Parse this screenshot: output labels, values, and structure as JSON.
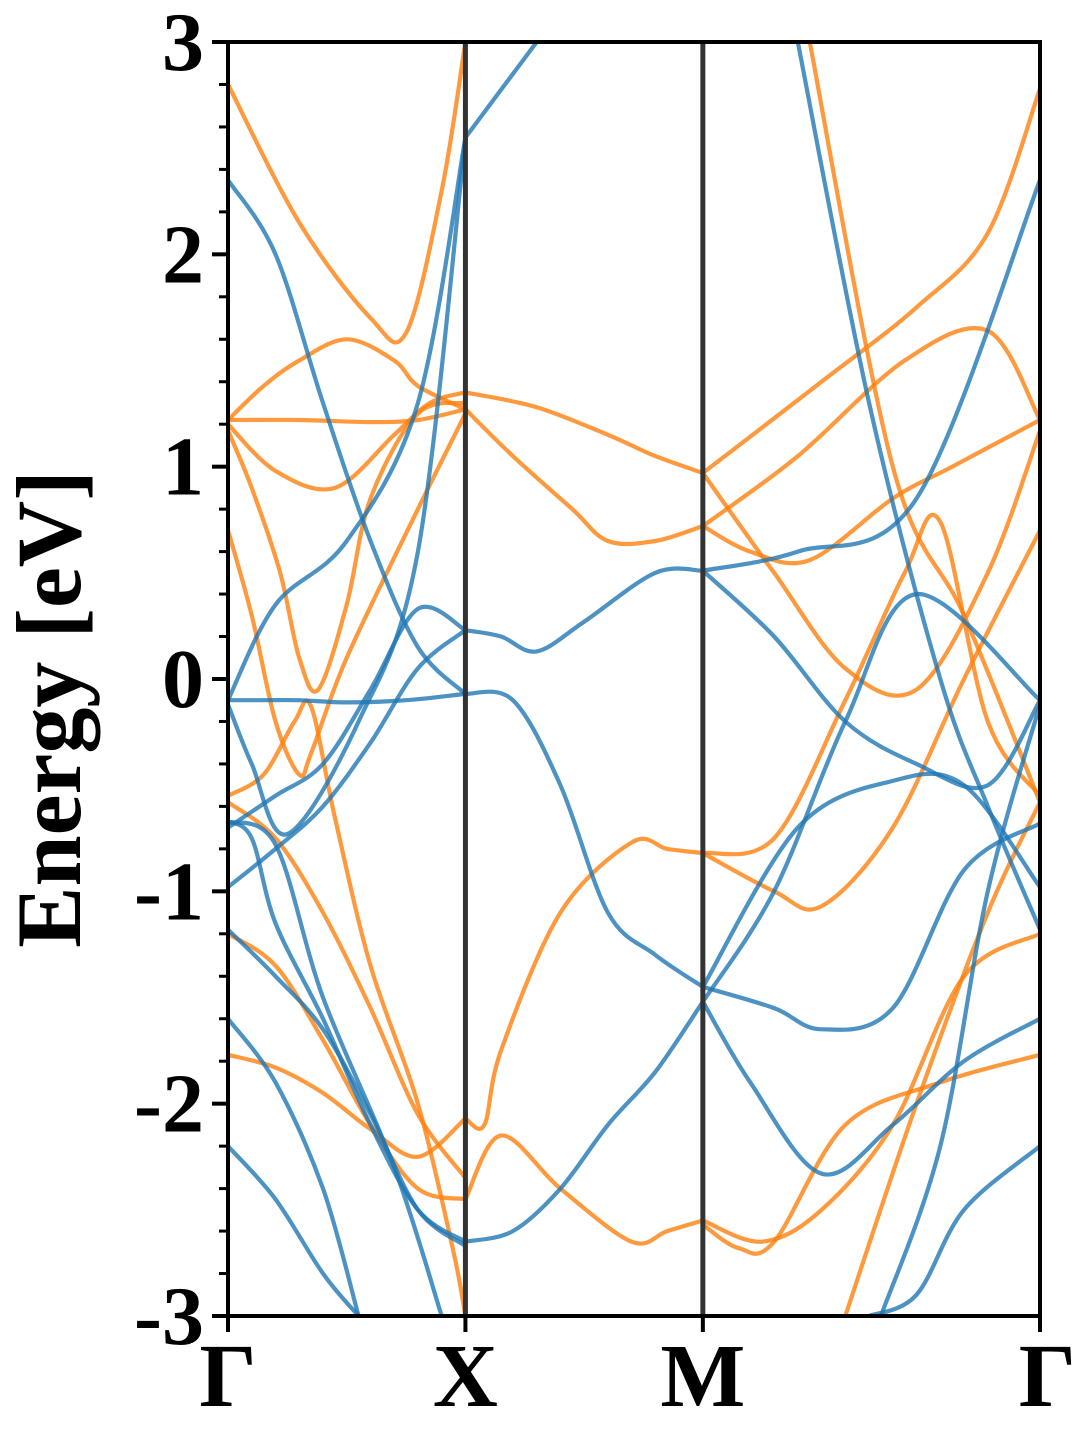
{
  "chart_data": {
    "type": "line",
    "title": "",
    "xlabel": "",
    "ylabel": "Energy [eV]",
    "ylim": [
      -3,
      3
    ],
    "yticks": [
      -3,
      -2,
      -1,
      0,
      1,
      2,
      3
    ],
    "ytick_labels": [
      "-3",
      "-2",
      "-1",
      "0",
      "1",
      "2",
      "3"
    ],
    "k_path": {
      "labels": [
        "Γ",
        "X",
        "M",
        "Γ"
      ],
      "positions": [
        0,
        1,
        2,
        3.42
      ]
    },
    "high_symmetry_lines": [
      1,
      2
    ],
    "grid": false,
    "legend": "none",
    "series_colors": {
      "blue": "#1f77b4",
      "orange": "#ff7f0e"
    },
    "series": [
      {
        "color": "#ff7f0e",
        "x": [
          0,
          0.3,
          0.6,
          0.75,
          0.9,
          1.0
        ],
        "y": [
          2.8,
          2.15,
          1.7,
          1.63,
          2.3,
          3.0
        ]
      },
      {
        "color": "#ff7f0e",
        "x": [
          0,
          0.3,
          0.6,
          0.8,
          1.0
        ],
        "y": [
          1.22,
          1.22,
          1.21,
          1.22,
          1.27
        ]
      },
      {
        "color": "#ff7f0e",
        "x": [
          0,
          0.2,
          0.45,
          0.7,
          0.85,
          1.0
        ],
        "y": [
          1.2,
          0.98,
          0.9,
          1.15,
          1.3,
          1.35
        ]
      },
      {
        "color": "#ff7f0e",
        "x": [
          0,
          0.15,
          0.3,
          0.5,
          0.7,
          0.8,
          1.0
        ],
        "y": [
          1.22,
          1.38,
          1.5,
          1.6,
          1.5,
          1.38,
          1.27
        ]
      },
      {
        "color": "#ff7f0e",
        "x": [
          0,
          0.1,
          0.22,
          0.3,
          0.38,
          0.5,
          0.6,
          0.8,
          1.0
        ],
        "y": [
          1.17,
          0.9,
          0.5,
          0.1,
          -0.05,
          0.35,
          0.85,
          1.25,
          1.3
        ]
      },
      {
        "color": "#ff7f0e",
        "x": [
          0,
          0.1,
          0.2,
          0.3,
          0.35,
          0.5,
          0.8,
          1.0
        ],
        "y": [
          0.7,
          0.3,
          -0.2,
          -0.45,
          -0.35,
          0.1,
          0.8,
          1.25
        ]
      },
      {
        "color": "#ff7f0e",
        "x": [
          0,
          0.15,
          0.28,
          0.35,
          0.45,
          0.6,
          0.8,
          0.95,
          1.0
        ],
        "y": [
          -0.55,
          -0.45,
          -0.2,
          -0.13,
          -0.65,
          -1.35,
          -2.0,
          -2.7,
          -3.0
        ]
      },
      {
        "color": "#ff7f0e",
        "x": [
          0,
          0.2,
          0.4,
          0.6,
          0.8,
          1.0
        ],
        "y": [
          -0.58,
          -0.75,
          -1.1,
          -1.55,
          -2.05,
          -2.35
        ]
      },
      {
        "color": "#ff7f0e",
        "x": [
          0,
          0.2,
          0.4,
          0.6,
          0.8,
          1.0
        ],
        "y": [
          -1.2,
          -1.35,
          -1.7,
          -2.1,
          -2.4,
          -2.45
        ]
      },
      {
        "color": "#ff7f0e",
        "x": [
          0,
          0.2,
          0.4,
          0.6,
          0.8,
          1.0
        ],
        "y": [
          -1.77,
          -1.83,
          -1.95,
          -2.12,
          -2.25,
          -2.07
        ]
      },
      {
        "color": "#ff7f0e",
        "x": [
          1.0,
          1.3,
          1.6,
          1.8,
          2.0
        ],
        "y": [
          1.35,
          1.28,
          1.15,
          1.05,
          0.97
        ]
      },
      {
        "color": "#ff7f0e",
        "x": [
          1.0,
          1.2,
          1.45,
          1.6,
          1.8,
          2.0
        ],
        "y": [
          1.27,
          1.05,
          0.8,
          0.65,
          0.65,
          0.72
        ]
      },
      {
        "color": "#ff7f0e",
        "x": [
          1.0,
          1.08,
          1.15,
          1.4,
          1.7,
          1.85,
          2.0
        ],
        "y": [
          -2.07,
          -2.1,
          -1.75,
          -1.1,
          -0.77,
          -0.8,
          -0.82
        ]
      },
      {
        "color": "#ff7f0e",
        "x": [
          1.0,
          1.15,
          1.4,
          1.7,
          1.85,
          2.0
        ],
        "y": [
          -2.45,
          -2.15,
          -2.4,
          -2.65,
          -2.6,
          -2.55
        ]
      },
      {
        "color": "#ff7f0e",
        "x": [
          2.0,
          2.5,
          2.9,
          3.2,
          3.42
        ],
        "y": [
          0.97,
          1.4,
          1.75,
          2.1,
          2.78
        ]
      },
      {
        "color": "#ff7f0e",
        "x": [
          2.0,
          2.4,
          2.85,
          3.2,
          3.42
        ],
        "y": [
          0.72,
          1.05,
          1.5,
          1.64,
          1.22
        ]
      },
      {
        "color": "#ff7f0e",
        "x": [
          2.0,
          2.2,
          2.45,
          2.8,
          3.05,
          3.42
        ],
        "y": [
          0.72,
          0.6,
          0.56,
          0.85,
          1.0,
          1.22
        ]
      },
      {
        "color": "#ff7f0e",
        "x": [
          2.0,
          2.3,
          2.6,
          2.9,
          3.2,
          3.42
        ],
        "y": [
          0.97,
          0.5,
          0.05,
          -0.05,
          0.5,
          1.17
        ]
      },
      {
        "color": "#ff7f0e",
        "x": [
          2.0,
          2.3,
          2.6,
          2.85,
          3.0,
          3.2,
          3.42
        ],
        "y": [
          -0.82,
          -0.75,
          -0.1,
          0.5,
          0.74,
          -0.2,
          -0.55
        ]
      },
      {
        "color": "#ff7f0e",
        "x": [
          2.0,
          2.3,
          2.5,
          2.8,
          3.1,
          3.42
        ],
        "y": [
          -0.82,
          -1.0,
          -1.07,
          -0.7,
          0.0,
          0.7
        ]
      },
      {
        "color": "#ff7f0e",
        "x": [
          2.45,
          2.8,
          3.1,
          3.42
        ],
        "y": [
          3.0,
          1.0,
          0.3,
          -0.58
        ]
      },
      {
        "color": "#ff7f0e",
        "x": [
          2.0,
          2.25,
          2.5,
          2.8,
          3.1,
          3.42
        ],
        "y": [
          -2.55,
          -2.65,
          -2.5,
          -2.1,
          -1.4,
          -1.2
        ]
      },
      {
        "color": "#ff7f0e",
        "x": [
          2.0,
          2.15,
          2.3,
          2.6,
          3.0,
          3.42
        ],
        "y": [
          -2.57,
          -2.68,
          -2.65,
          -2.1,
          -1.9,
          -1.77
        ]
      },
      {
        "color": "#ff7f0e",
        "x": [
          2.6,
          2.9,
          3.2,
          3.42
        ],
        "y": [
          -3.0,
          -2.0,
          -1.1,
          -0.58
        ]
      },
      {
        "color": "#1f77b4",
        "x": [
          0,
          0.2,
          0.4,
          0.6,
          0.8,
          1.0
        ],
        "y": [
          2.35,
          2.0,
          1.3,
          0.65,
          0.15,
          -0.07
        ]
      },
      {
        "color": "#1f77b4",
        "x": [
          0,
          0.15,
          0.3,
          0.5,
          0.75,
          1.0
        ],
        "y": [
          -0.1,
          -0.1,
          -0.1,
          -0.11,
          -0.1,
          -0.07
        ]
      },
      {
        "color": "#1f77b4",
        "x": [
          0,
          0.1,
          0.25,
          0.55,
          0.8,
          1.0
        ],
        "y": [
          -0.12,
          -0.4,
          -0.73,
          -0.2,
          0.6,
          2.55
        ]
      },
      {
        "color": "#1f77b4",
        "x": [
          0,
          0.2,
          0.5,
          0.8,
          1.0
        ],
        "y": [
          -0.1,
          0.35,
          0.65,
          1.3,
          2.55
        ]
      },
      {
        "color": "#1f77b4",
        "x": [
          0,
          0.2,
          0.4,
          0.6,
          0.8,
          1.0
        ],
        "y": [
          -0.7,
          -0.55,
          -0.4,
          -0.05,
          0.33,
          0.23
        ]
      },
      {
        "color": "#1f77b4",
        "x": [
          0,
          0.2,
          0.4,
          0.6,
          0.8,
          1.0
        ],
        "y": [
          -0.98,
          -0.8,
          -0.6,
          -0.3,
          0.05,
          0.23
        ]
      },
      {
        "color": "#1f77b4",
        "x": [
          0,
          0.1,
          0.2,
          0.4,
          0.6,
          0.8,
          1.0
        ],
        "y": [
          -0.67,
          -0.75,
          -1.15,
          -1.6,
          -2.1,
          -2.5,
          -2.65
        ]
      },
      {
        "color": "#1f77b4",
        "x": [
          0,
          0.2,
          0.4,
          0.6,
          0.8,
          1.0
        ],
        "y": [
          -1.18,
          -1.4,
          -1.65,
          -2.05,
          -2.5,
          -2.67
        ]
      },
      {
        "color": "#1f77b4",
        "x": [
          0,
          0.2,
          0.4,
          0.55
        ],
        "y": [
          -1.6,
          -1.9,
          -2.4,
          -3.0
        ]
      },
      {
        "color": "#1f77b4",
        "x": [
          0,
          0.2,
          0.4,
          0.55
        ],
        "y": [
          -2.2,
          -2.45,
          -2.8,
          -3.0
        ]
      },
      {
        "color": "#1f77b4",
        "x": [
          0,
          0.2,
          0.4,
          0.7,
          0.9
        ],
        "y": [
          -0.67,
          -0.78,
          -1.5,
          -2.3,
          -3.0
        ]
      },
      {
        "color": "#1f77b4",
        "x": [
          1.0,
          1.15,
          1.3,
          1.5,
          1.8,
          2.0
        ],
        "y": [
          0.23,
          0.2,
          0.13,
          0.27,
          0.5,
          0.51
        ]
      },
      {
        "color": "#1f77b4",
        "x": [
          1.0,
          1.2,
          1.4,
          1.6,
          1.8,
          2.0
        ],
        "y": [
          -0.07,
          -0.1,
          -0.5,
          -1.1,
          -1.3,
          -1.45
        ]
      },
      {
        "color": "#1f77b4",
        "x": [
          1.0,
          1.2,
          1.4,
          1.6,
          1.8,
          2.0
        ],
        "y": [
          -2.65,
          -2.6,
          -2.4,
          -2.1,
          -1.85,
          -1.52
        ]
      },
      {
        "color": "#1f77b4",
        "x": [
          1.0,
          1.3
        ],
        "y": [
          2.55,
          3.0
        ]
      },
      {
        "color": "#1f77b4",
        "x": [
          2.0,
          2.4,
          2.9,
          3.42
        ],
        "y": [
          0.51,
          0.6,
          0.85,
          2.35
        ]
      },
      {
        "color": "#1f77b4",
        "x": [
          2.0,
          2.3,
          2.6,
          2.9,
          3.2,
          3.42
        ],
        "y": [
          0.51,
          0.2,
          -0.2,
          -0.4,
          -0.5,
          -0.1
        ]
      },
      {
        "color": "#1f77b4",
        "x": [
          2.0,
          2.3,
          2.5,
          2.8,
          3.1,
          3.42
        ],
        "y": [
          -1.45,
          -1.55,
          -1.65,
          -1.55,
          -0.9,
          -0.68
        ]
      },
      {
        "color": "#1f77b4",
        "x": [
          2.0,
          2.4,
          2.8,
          3.1,
          3.42
        ],
        "y": [
          -1.45,
          -0.7,
          -0.48,
          -0.5,
          -0.98
        ]
      },
      {
        "color": "#1f77b4",
        "x": [
          2.0,
          2.3,
          2.6,
          2.9,
          3.42
        ],
        "y": [
          -1.52,
          -1.0,
          -0.2,
          0.4,
          -0.1
        ]
      },
      {
        "color": "#1f77b4",
        "x": [
          2.0,
          2.2,
          2.5,
          2.8,
          3.1,
          3.42
        ],
        "y": [
          -1.52,
          -1.9,
          -2.33,
          -2.1,
          -1.8,
          -1.6
        ]
      },
      {
        "color": "#1f77b4",
        "x": [
          2.4,
          2.7,
          3.0,
          3.2,
          3.42
        ],
        "y": [
          3.0,
          1.3,
          0.0,
          -0.6,
          -1.18
        ]
      },
      {
        "color": "#1f77b4",
        "x": [
          2.75,
          3.0,
          3.2,
          3.42
        ],
        "y": [
          -3.0,
          -2.2,
          -1.0,
          -0.12
        ]
      },
      {
        "color": "#1f77b4",
        "x": [
          2.7,
          2.9,
          3.1,
          3.42
        ],
        "y": [
          -3.0,
          -2.9,
          -2.5,
          -2.2
        ]
      }
    ]
  }
}
